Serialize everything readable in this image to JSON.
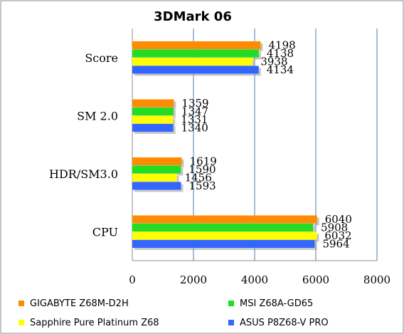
{
  "chart_data": {
    "type": "bar",
    "orientation": "horizontal",
    "title": "3DMark 06",
    "categories": [
      "Score",
      "SM 2.0",
      "HDR/SM3.0",
      "CPU"
    ],
    "series": [
      {
        "name": "GIGABYTE Z68M-D2H",
        "color": "#ff8c00",
        "values": [
          4198,
          1359,
          1619,
          6040
        ]
      },
      {
        "name": "MSI Z68A-GD65",
        "color": "#22dd22",
        "values": [
          4138,
          1347,
          1590,
          5908
        ]
      },
      {
        "name": "Sapphire Pure Platinum  Z68",
        "color": "#ffff00",
        "values": [
          3938,
          1331,
          1456,
          6032
        ]
      },
      {
        "name": "ASUS P8Z68-V PRO",
        "color": "#3366ff",
        "values": [
          4134,
          1340,
          1593,
          5964
        ]
      }
    ],
    "xlim": [
      0,
      8000
    ],
    "xticks": [
      "0",
      "2000",
      "4000",
      "6000",
      "8000"
    ],
    "grid": "vertical",
    "legend_position": "bottom"
  }
}
